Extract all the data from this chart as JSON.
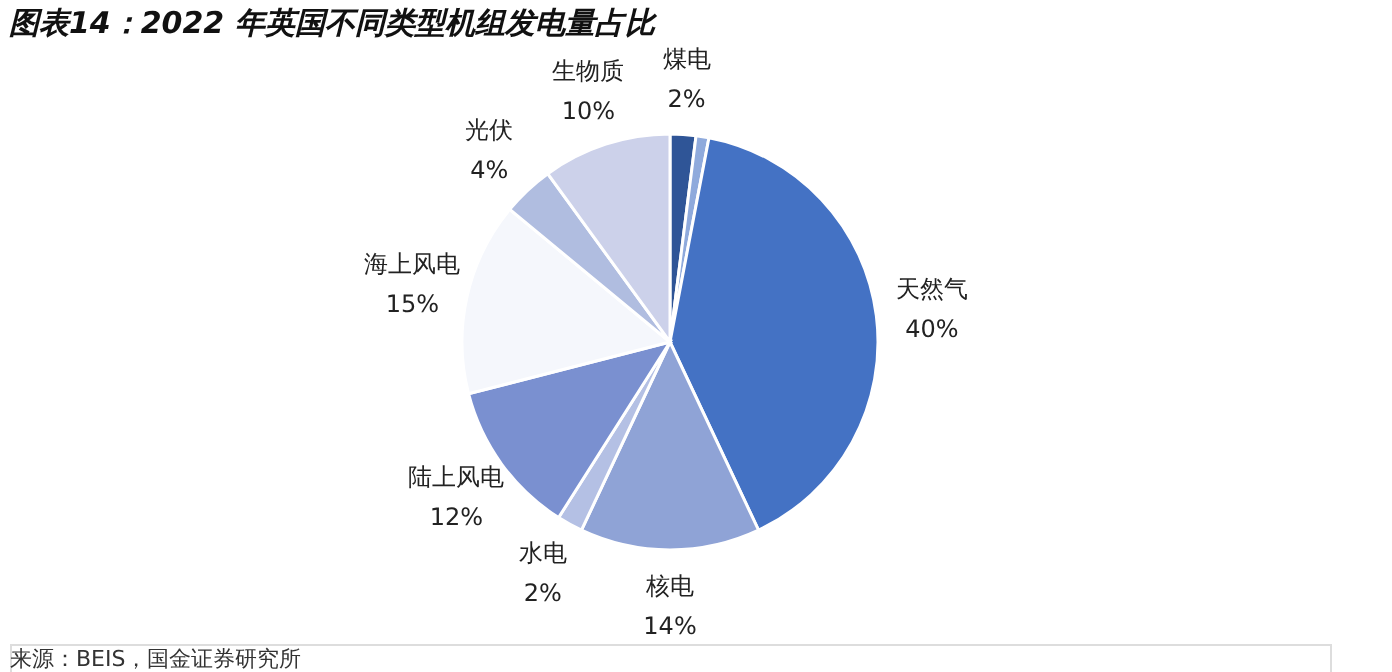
{
  "chart_data": {
    "type": "pie",
    "title": "图表14：2022 年英国不同类型机组发电量占比",
    "categories": [
      "煤电",
      null,
      "天然气",
      "核电",
      "水电",
      "陆上风电",
      "海上风电",
      "光伏",
      "生物质"
    ],
    "values": [
      2,
      1,
      40,
      14,
      2,
      12,
      15,
      4,
      10
    ],
    "value_labels": [
      "2%",
      null,
      "40%",
      "14%",
      "2%",
      "12%",
      "15%",
      "4%",
      "10%"
    ],
    "colors": [
      "#2f5597",
      "#8faadc",
      "#4472c4",
      "#8fa3d6",
      "#b4c0e4",
      "#7a90d0",
      "#f5f7fc",
      "#b0bde0",
      "#ccd1ea"
    ],
    "annotations": [
      "来源：BEIS，国金证券研究所"
    ]
  }
}
